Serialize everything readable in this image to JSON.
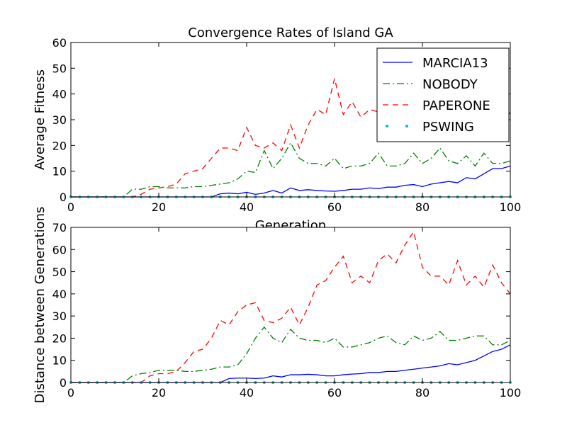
{
  "chart_data": [
    {
      "type": "line",
      "title": "Convergence Rates of Island GA",
      "xlabel": "Generation",
      "ylabel": "Average Fitness",
      "x": [
        0,
        2,
        4,
        6,
        8,
        10,
        12,
        14,
        16,
        18,
        20,
        22,
        24,
        26,
        28,
        30,
        32,
        34,
        36,
        38,
        40,
        42,
        44,
        46,
        48,
        50,
        52,
        54,
        56,
        58,
        60,
        62,
        64,
        66,
        68,
        70,
        72,
        74,
        76,
        78,
        80,
        82,
        84,
        86,
        88,
        90,
        92,
        94,
        96,
        98,
        100
      ],
      "xlim": [
        0,
        100
      ],
      "xticks": [
        0,
        20,
        40,
        60,
        80,
        100
      ],
      "ylim": [
        0,
        60
      ],
      "yticks": [
        0,
        10,
        20,
        30,
        40,
        50,
        60
      ],
      "legend": "upper right",
      "series": [
        {
          "name": "MARCIA13",
          "color": "#0000ff",
          "linestyle": "solid",
          "values": [
            0,
            0,
            0,
            0,
            0,
            0,
            0,
            0,
            0,
            0,
            0,
            0,
            0,
            0,
            0,
            0,
            0,
            1.2,
            1.5,
            1.2,
            1.8,
            1.0,
            1.5,
            2.5,
            1.5,
            3.5,
            2.5,
            2.8,
            2.5,
            2.3,
            2.2,
            2.5,
            3,
            3,
            3.5,
            3.2,
            3.8,
            3.8,
            4.5,
            4.8,
            4,
            5,
            5.5,
            6,
            5.5,
            7.5,
            7,
            9,
            11,
            11,
            12
          ]
        },
        {
          "name": "NOBODY",
          "color": "#008000",
          "linestyle": "dashdot",
          "values": [
            0,
            0,
            0,
            0,
            0,
            0,
            0,
            3,
            3,
            4,
            4,
            3.5,
            3.5,
            3.5,
            4,
            4,
            4.5,
            5,
            5.5,
            7,
            10,
            9.5,
            18,
            11,
            15,
            21,
            15,
            13,
            13,
            12,
            15,
            11,
            12,
            12,
            13,
            17,
            12,
            12,
            13,
            17,
            13,
            15,
            19,
            14,
            13,
            16,
            12,
            17,
            13,
            13,
            14
          ]
        },
        {
          "name": "PAPERONE",
          "color": "#ff0000",
          "linestyle": "dashed",
          "values": [
            0,
            0,
            0,
            0,
            0,
            0,
            0,
            0,
            1,
            3,
            3.5,
            4,
            5,
            9,
            10,
            11,
            15,
            19,
            19,
            18,
            27,
            20,
            19,
            21,
            18,
            28,
            19,
            28,
            34,
            32,
            46,
            32,
            37,
            31,
            34,
            33,
            36,
            38,
            38,
            40,
            38,
            38,
            40,
            38,
            37,
            36,
            38,
            35,
            33,
            27,
            33
          ]
        },
        {
          "name": "PSWING",
          "color": "#00bfbf",
          "linestyle": "dotted",
          "values": [
            0,
            0,
            0,
            0,
            0,
            0,
            0,
            0,
            0,
            0,
            0,
            0,
            0,
            0,
            0,
            0,
            0,
            0,
            0,
            0,
            0,
            0,
            0,
            0,
            0,
            0,
            0,
            0,
            0,
            0,
            0,
            0,
            0,
            0,
            0,
            0,
            0,
            0,
            0,
            0,
            0,
            0,
            0,
            0,
            0,
            0,
            0,
            0,
            0,
            0,
            0
          ]
        }
      ]
    },
    {
      "type": "line",
      "ylabel": "Distance between Generations",
      "x": [
        0,
        2,
        4,
        6,
        8,
        10,
        12,
        14,
        16,
        18,
        20,
        22,
        24,
        26,
        28,
        30,
        32,
        34,
        36,
        38,
        40,
        42,
        44,
        46,
        48,
        50,
        52,
        54,
        56,
        58,
        60,
        62,
        64,
        66,
        68,
        70,
        72,
        74,
        76,
        78,
        80,
        82,
        84,
        86,
        88,
        90,
        92,
        94,
        96,
        98,
        100
      ],
      "xlim": [
        0,
        100
      ],
      "xticks": [
        0,
        20,
        40,
        60,
        80,
        100
      ],
      "ylim": [
        0,
        70
      ],
      "yticks": [
        0,
        10,
        20,
        30,
        40,
        50,
        60,
        70
      ],
      "series": [
        {
          "color": "#0000ff",
          "linestyle": "solid",
          "values": [
            0,
            0,
            0,
            0,
            0,
            0,
            0,
            0,
            0,
            0,
            0,
            0,
            0,
            0,
            0,
            0,
            0,
            0,
            1.8,
            2,
            2,
            1.8,
            2,
            3,
            2.5,
            3.5,
            3.5,
            3.7,
            3.5,
            3,
            3,
            3.5,
            3.8,
            4,
            4.5,
            4.5,
            5,
            5,
            5.5,
            6,
            6.5,
            7,
            7.5,
            8.5,
            8,
            9,
            10,
            12,
            14,
            15,
            17
          ]
        },
        {
          "color": "#008000",
          "linestyle": "dashdot",
          "values": [
            0,
            0,
            0,
            0,
            0,
            0,
            0,
            3,
            4,
            4.5,
            5.5,
            5.5,
            5.5,
            5,
            5,
            5.5,
            6,
            7,
            7,
            8,
            13,
            20,
            25,
            20,
            18,
            24,
            20,
            19,
            19,
            18,
            20,
            16,
            16,
            17,
            18,
            20,
            21,
            18,
            17,
            21,
            19,
            20,
            23,
            19,
            19,
            20,
            21,
            21,
            17,
            17,
            19
          ]
        },
        {
          "color": "#ff0000",
          "linestyle": "dashed",
          "values": [
            0,
            0,
            0,
            0,
            0,
            0,
            0,
            0,
            0,
            3,
            4,
            4,
            5,
            9,
            14,
            15,
            20,
            28,
            26,
            32,
            35,
            36,
            28,
            27,
            29,
            34,
            26,
            34,
            44,
            46,
            52,
            57,
            45,
            48,
            45,
            55,
            58,
            54,
            62,
            68,
            52,
            48,
            48,
            44,
            55,
            44,
            48,
            43,
            53,
            45,
            40
          ]
        },
        {
          "color": "#00bfbf",
          "linestyle": "dotted",
          "values": [
            0,
            0,
            0,
            0,
            0,
            0,
            0,
            0,
            0,
            0,
            0,
            0,
            0,
            0,
            0,
            0,
            0,
            0,
            0,
            0,
            0,
            0,
            0,
            0,
            0,
            0,
            0,
            0,
            0,
            0,
            0,
            0,
            0,
            0,
            0,
            0,
            0,
            0,
            0,
            0,
            0,
            0,
            0,
            0,
            0,
            0,
            0,
            0,
            0,
            0,
            0
          ]
        }
      ]
    }
  ]
}
